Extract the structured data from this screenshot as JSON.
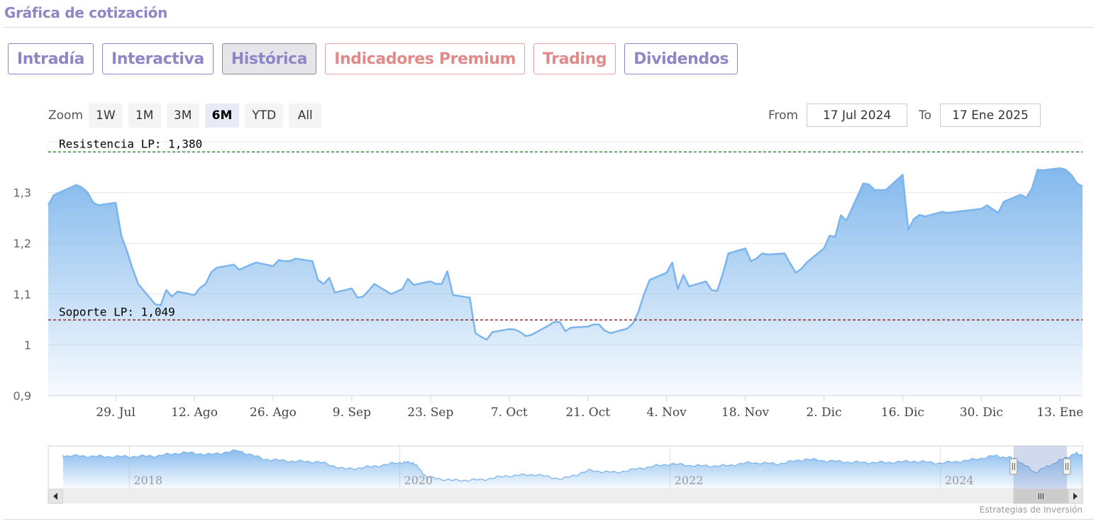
{
  "page": {
    "title": "Gráfica de cotización",
    "credit": "Estrategias de Inversión"
  },
  "tabs": [
    {
      "label": "Intradía",
      "style": "normal"
    },
    {
      "label": "Interactiva",
      "style": "normal"
    },
    {
      "label": "Histórica",
      "style": "active"
    },
    {
      "label": "Indicadores Premium",
      "style": "premium"
    },
    {
      "label": "Trading",
      "style": "premium"
    },
    {
      "label": "Dividendos",
      "style": "normal"
    }
  ],
  "zoom": {
    "label": "Zoom",
    "buttons": [
      "1W",
      "1M",
      "3M",
      "6M",
      "YTD",
      "All"
    ],
    "selected": "6M"
  },
  "range": {
    "from_label": "From",
    "from_value": "17 Jul 2024",
    "to_label": "To",
    "to_value": "17 Ene 2025"
  },
  "colors": {
    "line": "#7cb5ec",
    "fill_top": "#7cb5ec",
    "resistance": "#2e7d32",
    "support": "#8b1a1a",
    "accent": "#8e87c6",
    "premium": "#e08a8a"
  },
  "chart_data": {
    "type": "area",
    "title": "",
    "x_ticks": [
      "29. Jul",
      "12. Ago",
      "26. Ago",
      "9. Sep",
      "23. Sep",
      "7. Oct",
      "21. Oct",
      "4. Nov",
      "18. Nov",
      "2. Dic",
      "16. Dic",
      "30. Dic",
      "13. Ene"
    ],
    "y_ticks": [
      "0,9",
      "1",
      "1,1",
      "1,2",
      "1,3"
    ],
    "y_tick_values": [
      0.9,
      1.0,
      1.1,
      1.2,
      1.3
    ],
    "ylim": [
      0.9,
      1.4
    ],
    "x_range": [
      "2024-07-17",
      "2025-01-17"
    ],
    "grid": true,
    "series": [
      {
        "x": [
          "2024-07-17",
          "2024-07-18",
          "2024-07-19",
          "2024-07-22",
          "2024-07-23",
          "2024-07-24",
          "2024-07-25",
          "2024-07-26",
          "2024-07-29",
          "2024-07-30",
          "2024-07-31",
          "2024-08-01",
          "2024-08-02",
          "2024-08-05",
          "2024-08-06",
          "2024-08-07",
          "2024-08-08",
          "2024-08-09",
          "2024-08-12",
          "2024-08-13",
          "2024-08-14",
          "2024-08-15",
          "2024-08-16",
          "2024-08-19",
          "2024-08-20",
          "2024-08-21",
          "2024-08-22",
          "2024-08-23",
          "2024-08-26",
          "2024-08-27",
          "2024-08-28",
          "2024-08-29",
          "2024-08-30",
          "2024-09-02",
          "2024-09-03",
          "2024-09-04",
          "2024-09-05",
          "2024-09-06",
          "2024-09-09",
          "2024-09-10",
          "2024-09-11",
          "2024-09-12",
          "2024-09-13",
          "2024-09-16",
          "2024-09-17",
          "2024-09-18",
          "2024-09-19",
          "2024-09-20",
          "2024-09-23",
          "2024-09-24",
          "2024-09-25",
          "2024-09-26",
          "2024-09-27",
          "2024-09-30",
          "2024-10-01",
          "2024-10-02",
          "2024-10-03",
          "2024-10-04",
          "2024-10-07",
          "2024-10-08",
          "2024-10-09",
          "2024-10-10",
          "2024-10-11",
          "2024-10-14",
          "2024-10-15",
          "2024-10-16",
          "2024-10-17",
          "2024-10-18",
          "2024-10-21",
          "2024-10-22",
          "2024-10-23",
          "2024-10-24",
          "2024-10-25",
          "2024-10-28",
          "2024-10-29",
          "2024-10-30",
          "2024-10-31",
          "2024-11-01",
          "2024-11-04",
          "2024-11-05",
          "2024-11-06",
          "2024-11-07",
          "2024-11-08",
          "2024-11-11",
          "2024-11-12",
          "2024-11-13",
          "2024-11-14",
          "2024-11-15",
          "2024-11-18",
          "2024-11-19",
          "2024-11-20",
          "2024-11-21",
          "2024-11-22",
          "2024-11-25",
          "2024-11-26",
          "2024-11-27",
          "2024-11-28",
          "2024-11-29",
          "2024-12-02",
          "2024-12-03",
          "2024-12-04",
          "2024-12-05",
          "2024-12-06",
          "2024-12-09",
          "2024-12-10",
          "2024-12-11",
          "2024-12-12",
          "2024-12-13",
          "2024-12-16",
          "2024-12-17",
          "2024-12-18",
          "2024-12-19",
          "2024-12-20",
          "2024-12-23",
          "2024-12-24",
          "2024-12-27",
          "2024-12-30",
          "2024-12-31",
          "2025-01-02",
          "2025-01-03",
          "2025-01-06",
          "2025-01-07",
          "2025-01-08",
          "2025-01-09",
          "2025-01-10",
          "2025-01-13",
          "2025-01-14",
          "2025-01-15",
          "2025-01-16",
          "2025-01-17"
        ],
        "y": [
          1.275,
          1.295,
          1.3,
          1.315,
          1.31,
          1.3,
          1.28,
          1.275,
          1.28,
          1.215,
          1.185,
          1.15,
          1.12,
          1.08,
          1.078,
          1.108,
          1.095,
          1.105,
          1.098,
          1.112,
          1.12,
          1.143,
          1.152,
          1.158,
          1.148,
          1.153,
          1.158,
          1.162,
          1.155,
          1.167,
          1.165,
          1.165,
          1.17,
          1.165,
          1.128,
          1.12,
          1.132,
          1.103,
          1.111,
          1.093,
          1.095,
          1.107,
          1.12,
          1.1,
          1.105,
          1.11,
          1.13,
          1.118,
          1.125,
          1.12,
          1.12,
          1.145,
          1.098,
          1.093,
          1.023,
          1.016,
          1.01,
          1.025,
          1.031,
          1.03,
          1.025,
          1.017,
          1.02,
          1.038,
          1.045,
          1.045,
          1.027,
          1.034,
          1.036,
          1.04,
          1.04,
          1.028,
          1.023,
          1.032,
          1.042,
          1.065,
          1.1,
          1.128,
          1.142,
          1.162,
          1.11,
          1.138,
          1.115,
          1.125,
          1.108,
          1.106,
          1.14,
          1.18,
          1.19,
          1.165,
          1.17,
          1.18,
          1.178,
          1.18,
          1.16,
          1.142,
          1.15,
          1.163,
          1.19,
          1.215,
          1.213,
          1.255,
          1.245,
          1.318,
          1.316,
          1.305,
          1.305,
          1.305,
          1.335,
          1.227,
          1.248,
          1.256,
          1.253,
          1.262,
          1.26,
          1.264,
          1.268,
          1.275,
          1.26,
          1.282,
          1.296,
          1.29,
          1.308,
          1.345,
          1.344,
          1.348,
          1.345,
          1.335,
          1.318,
          1.312
        ]
      }
    ],
    "plot_lines": [
      {
        "label": "Resistencia LP: 1,380",
        "value": 1.38
      },
      {
        "label": "Soporte LP: 1,049",
        "value": 1.049
      }
    ],
    "navigator": {
      "x_ticks": [
        "2018",
        "2020",
        "2022",
        "2024"
      ],
      "x_tick_values": [
        2018,
        2020,
        2022,
        2024
      ],
      "x_range": [
        2017.4,
        2025.05
      ],
      "selected_range": [
        2024.54,
        2025.05
      ],
      "ylim": [
        0.8,
        1.45
      ],
      "x": [
        2017.4,
        2017.6,
        2017.8,
        2018.0,
        2018.2,
        2018.4,
        2018.6,
        2018.8,
        2019.0,
        2019.2,
        2019.4,
        2019.6,
        2019.8,
        2020.0,
        2020.1,
        2020.2,
        2020.4,
        2020.6,
        2020.8,
        2021.0,
        2021.2,
        2021.4,
        2021.6,
        2021.8,
        2022.0,
        2022.2,
        2022.4,
        2022.6,
        2022.8,
        2023.0,
        2023.2,
        2023.4,
        2023.6,
        2023.8,
        2024.0,
        2024.2,
        2024.4,
        2024.55,
        2024.7,
        2024.85,
        2025.0,
        2025.05
      ],
      "y": [
        1.3,
        1.3,
        1.29,
        1.29,
        1.3,
        1.35,
        1.32,
        1.38,
        1.25,
        1.22,
        1.21,
        1.1,
        1.14,
        1.2,
        1.2,
        0.98,
        0.93,
        0.94,
        1.0,
        1.02,
        0.95,
        1.08,
        1.05,
        1.12,
        1.18,
        1.15,
        1.15,
        1.2,
        1.18,
        1.25,
        1.22,
        1.2,
        1.2,
        1.22,
        1.19,
        1.23,
        1.3,
        1.26,
        1.05,
        1.2,
        1.34,
        1.3
      ]
    }
  }
}
